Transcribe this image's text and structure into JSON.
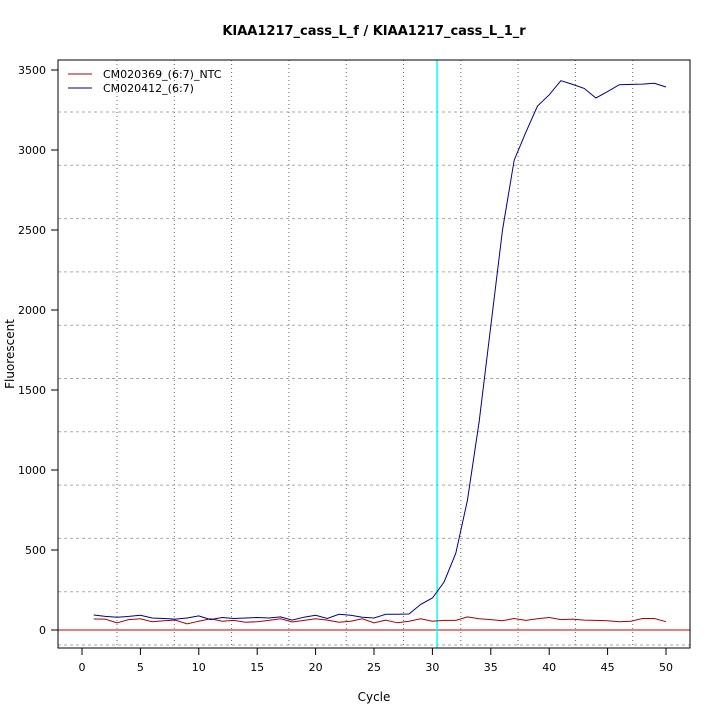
{
  "chart_data": {
    "type": "line",
    "title": "KIAA1217_cass_L_f / KIAA1217_cass_L_1_r",
    "xlabel": "Cycle",
    "ylabel": "Fluorescent",
    "xlim": [
      -2,
      52
    ],
    "ylim": [
      -100,
      3580
    ],
    "xticks": [
      0,
      5,
      10,
      15,
      20,
      25,
      30,
      35,
      40,
      45,
      50
    ],
    "yticks": [
      0,
      500,
      1000,
      1500,
      2000,
      2500,
      3000,
      3500
    ],
    "grid": true,
    "legend_position": "top-left",
    "threshold": {
      "value": 0,
      "color": "#cc0000"
    },
    "threshold_cycle": {
      "value": 30.4,
      "color": "#00ffff"
    },
    "x": [
      1,
      2,
      3,
      4,
      5,
      6,
      7,
      8,
      9,
      10,
      11,
      12,
      13,
      14,
      15,
      16,
      17,
      18,
      19,
      20,
      21,
      22,
      23,
      24,
      25,
      26,
      27,
      28,
      29,
      30,
      31,
      32,
      33,
      34,
      35,
      36,
      37,
      38,
      39,
      40,
      41,
      42,
      43,
      44,
      45,
      46,
      47,
      48,
      49,
      50
    ],
    "series": [
      {
        "name": "CM020369_(6:7)_NTC",
        "color": "#aa0000",
        "values": [
          69,
          68,
          45,
          65,
          70,
          52,
          58,
          62,
          38,
          55,
          70,
          55,
          60,
          48,
          52,
          60,
          70,
          50,
          60,
          70,
          62,
          48,
          55,
          70,
          45,
          62,
          45,
          55,
          70,
          55,
          60,
          60,
          82,
          70,
          65,
          58,
          72,
          60,
          70,
          78,
          65,
          68,
          62,
          60,
          58,
          52,
          55,
          72,
          72,
          52
        ]
      },
      {
        "name": "CM020412_(6:7)",
        "color": "#00008b",
        "values": [
          94,
          85,
          80,
          85,
          92,
          75,
          72,
          68,
          75,
          88,
          65,
          78,
          72,
          75,
          78,
          75,
          82,
          62,
          80,
          92,
          72,
          98,
          92,
          80,
          75,
          98,
          98,
          100,
          160,
          200,
          300,
          480,
          810,
          1300,
          1900,
          2500,
          2937,
          3110,
          3275,
          3345,
          3433,
          3410,
          3385,
          3325,
          3365,
          3408,
          3410,
          3412,
          3417,
          3394
        ]
      }
    ]
  }
}
